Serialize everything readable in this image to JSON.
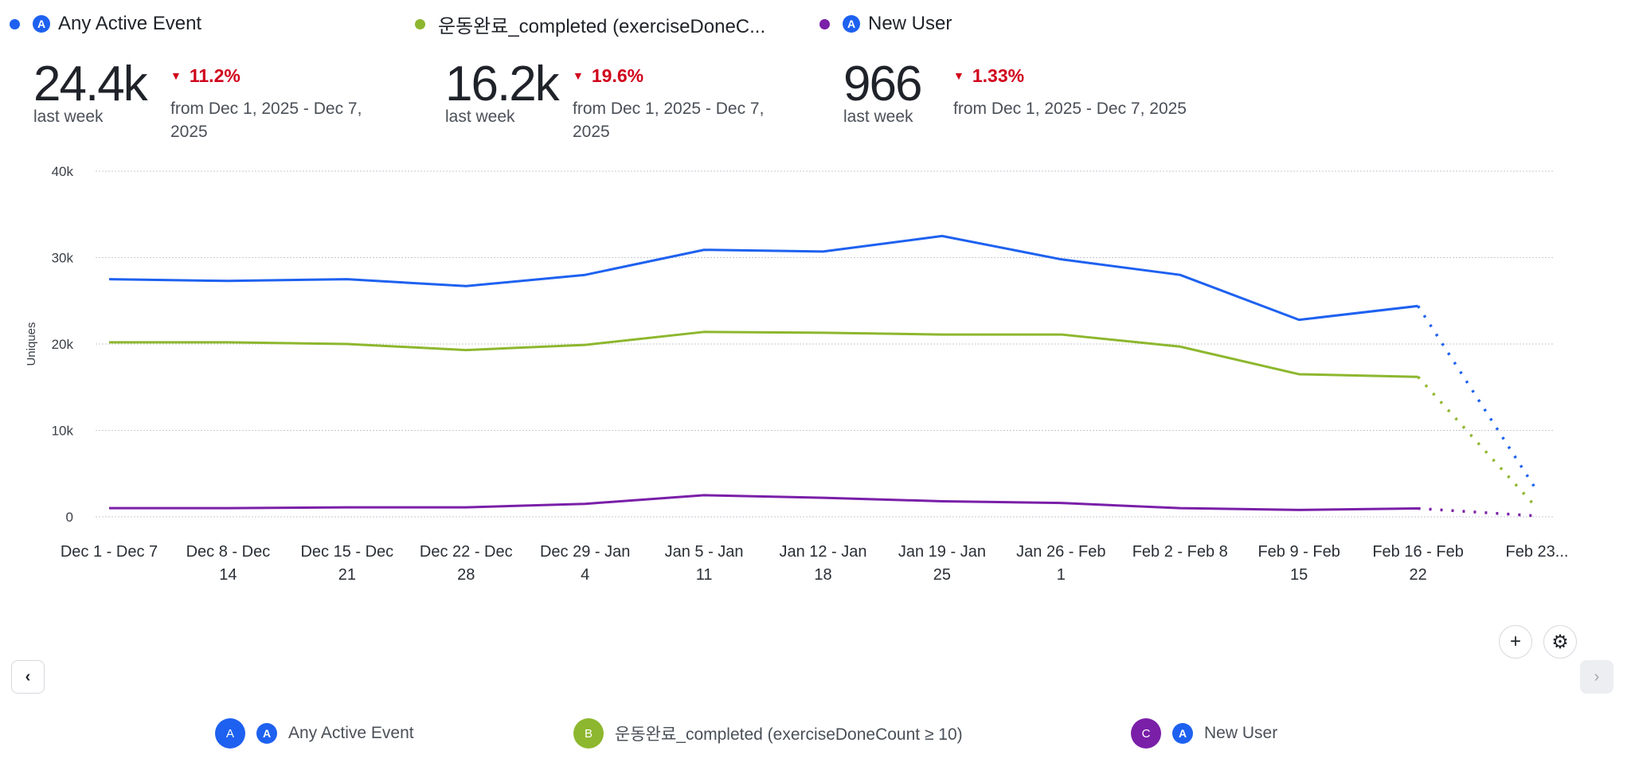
{
  "metrics": [
    {
      "name": "Any Active Event",
      "color": "#1e61f0",
      "has_icon": true,
      "value": "24.4k",
      "period": "last week",
      "change": "11.2%",
      "direction": "down",
      "from": "from Dec 1, 2025 - Dec 7, 2025"
    },
    {
      "name": "운동완료_completed (exerciseDoneC...",
      "color": "#8db72e",
      "has_icon": false,
      "value": "16.2k",
      "period": "last week",
      "change": "19.6%",
      "direction": "down",
      "from": "from Dec 1, 2025 - Dec 7, 2025"
    },
    {
      "name": "New User",
      "color": "#7a1fa8",
      "has_icon": true,
      "value": "966",
      "period": "last week",
      "change": "1.33%",
      "direction": "down",
      "from": "from Dec 1, 2025 - Dec 7, 2025"
    }
  ],
  "chart_data": {
    "type": "line",
    "ylabel": "Uniques",
    "ylim": [
      0,
      40000
    ],
    "yticks": [
      "0",
      "10k",
      "20k",
      "30k",
      "40k"
    ],
    "grid": true,
    "categories": [
      "Dec 1 - Dec 7",
      "Dec 8 - Dec 14",
      "Dec 15 - Dec 21",
      "Dec 22 - Dec 28",
      "Dec 29 - Jan 4",
      "Jan 5 - Jan 11",
      "Jan 12 - Jan 18",
      "Jan 19 - Jan 25",
      "Jan 26 - Feb 1",
      "Feb 2 - Feb 8",
      "Feb 9 - Feb 15",
      "Feb 16 - Feb 22",
      "Feb 23..."
    ],
    "tick_labels": [
      [
        "Dec 1 - Dec 7",
        ""
      ],
      [
        "Dec 8 - Dec",
        "14"
      ],
      [
        "Dec 15 - Dec",
        "21"
      ],
      [
        "Dec 22 - Dec",
        "28"
      ],
      [
        "Dec 29 - Jan",
        "4"
      ],
      [
        "Jan 5 - Jan",
        "11"
      ],
      [
        "Jan 12 - Jan",
        "18"
      ],
      [
        "Jan 19 - Jan",
        "25"
      ],
      [
        "Jan 26 - Feb",
        "1"
      ],
      [
        "Feb 2 - Feb 8",
        ""
      ],
      [
        "Feb 9 - Feb",
        "15"
      ],
      [
        "Feb 16 - Feb",
        "22"
      ],
      [
        "Feb 23...",
        ""
      ]
    ],
    "incomplete_last_period": true,
    "series": [
      {
        "name": "Any Active Event",
        "color": "#1e61f0",
        "values": [
          27500,
          27300,
          27500,
          26700,
          28000,
          30900,
          30700,
          32500,
          29800,
          28000,
          22800,
          24400,
          3000
        ]
      },
      {
        "name": "운동완료_completed (exerciseDoneCount ≥ 10)",
        "color": "#8db72e",
        "values": [
          20200,
          20200,
          20000,
          19300,
          19900,
          21400,
          21300,
          21100,
          21100,
          19700,
          16500,
          16200,
          1000
        ]
      },
      {
        "name": "New User",
        "color": "#7a1fa8",
        "values": [
          1000,
          1000,
          1100,
          1100,
          1500,
          2500,
          2200,
          1800,
          1600,
          1000,
          800,
          966,
          100
        ]
      }
    ]
  },
  "legend": [
    {
      "letter": "A",
      "label": "Any Active Event",
      "color": "#1e61f0"
    },
    {
      "letter": "B",
      "label": "운동완료_completed (exerciseDoneCount ≥ 10)",
      "color": "#8db72e"
    },
    {
      "letter": "C",
      "label": "New User",
      "color": "#7a1fa8"
    }
  ],
  "controls": {
    "add": "+",
    "settings": "⚙",
    "prev": "‹",
    "next": "›"
  }
}
